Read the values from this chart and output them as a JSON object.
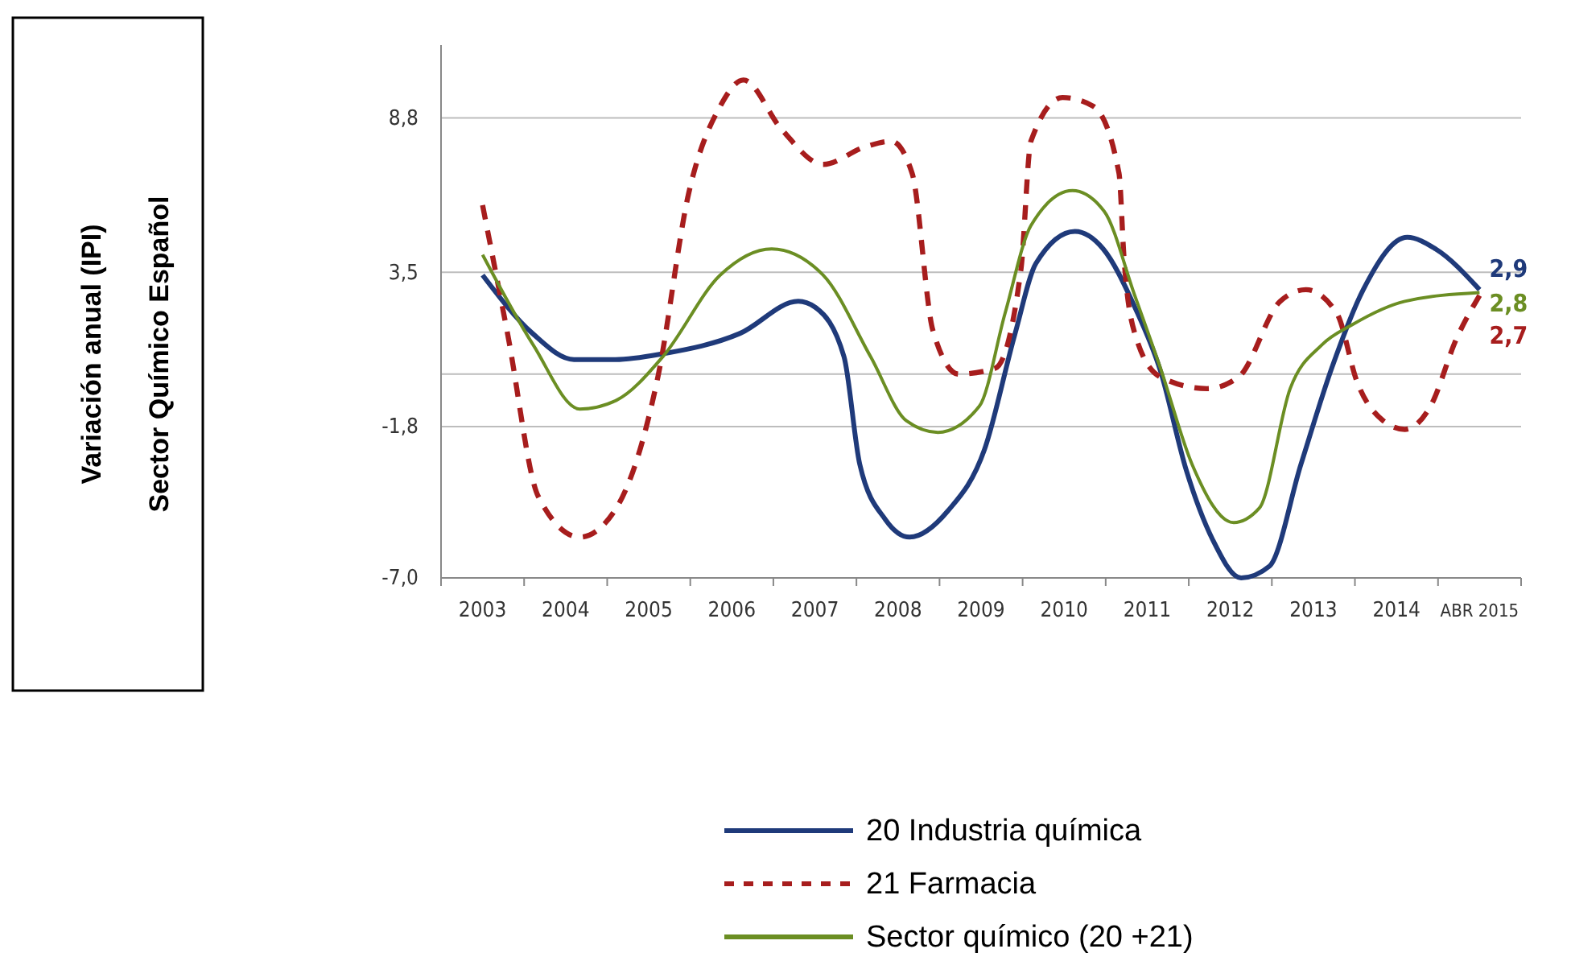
{
  "chart_data": {
    "type": "line",
    "ylabel": "Variación anual (IPI)\nSector Químico Español",
    "xlim": [
      2002.5,
      2015.5
    ],
    "xticks": [
      {
        "value": 2002.5,
        "label": null
      },
      {
        "value": 2003,
        "label": "2003"
      },
      {
        "value": 2003.5,
        "label": null
      },
      {
        "value": 2004,
        "label": "2004"
      },
      {
        "value": 2004.5,
        "label": null
      },
      {
        "value": 2005,
        "label": "2005"
      },
      {
        "value": 2005.5,
        "label": null
      },
      {
        "value": 2006,
        "label": "2006"
      },
      {
        "value": 2006.5,
        "label": null
      },
      {
        "value": 2007,
        "label": "2007"
      },
      {
        "value": 2007.5,
        "label": null
      },
      {
        "value": 2008,
        "label": "2008"
      },
      {
        "value": 2008.5,
        "label": null
      },
      {
        "value": 2009,
        "label": "2009"
      },
      {
        "value": 2009.5,
        "label": null
      },
      {
        "value": 2010,
        "label": "2010"
      },
      {
        "value": 2010.5,
        "label": null
      },
      {
        "value": 2011,
        "label": "2011"
      },
      {
        "value": 2011.5,
        "label": null
      },
      {
        "value": 2012,
        "label": "2012"
      },
      {
        "value": 2012.5,
        "label": null
      },
      {
        "value": 2013,
        "label": "2013"
      },
      {
        "value": 2013.5,
        "label": null
      },
      {
        "value": 2014,
        "label": "2014"
      },
      {
        "value": 2014.5,
        "label": null
      },
      {
        "value": 2015,
        "label": "ABR 2015"
      },
      {
        "value": 2015.5,
        "label": null
      }
    ],
    "ylim": [
      -7.0,
      11.3
    ],
    "yticks": [
      {
        "value": -7.0,
        "label": "-7,0"
      },
      {
        "value": -1.8,
        "label": "-1,8"
      },
      {
        "value": 0,
        "label": null
      },
      {
        "value": 3.5,
        "label": "3,5"
      },
      {
        "value": 8.8,
        "label": "8,8"
      }
    ],
    "grid": "y",
    "legend": "bottom",
    "series": [
      {
        "name": "20 Industria química",
        "color": "#1f3a7a",
        "line_style": "solid",
        "x": [
          2003,
          2003.6,
          2004.1,
          2004.6,
          2005.17,
          2006.1,
          2006.8,
          2007.0,
          2007.35,
          2007.54,
          2007.85,
          2008.14,
          2008.6,
          2009.04,
          2009.41,
          2009.66,
          2010.13,
          2010.47,
          2010.85,
          2011.16,
          2011.47,
          2011.79,
          2012.13,
          2012.47,
          2012.85,
          2013.22,
          2013.6,
          2014.13,
          2014.47,
          2015
        ],
        "values": [
          3.4,
          1.4,
          0.5,
          0.5,
          0.7,
          1.4,
          2.5,
          2.3,
          0.6,
          -3.1,
          -5.0,
          -5.6,
          -4.7,
          -2.6,
          1.4,
          3.8,
          4.9,
          4.3,
          2.3,
          0.1,
          -3.3,
          -5.7,
          -7.0,
          -6.6,
          -3.1,
          0.2,
          2.9,
          4.7,
          4.3,
          2.9
        ],
        "value_labels": [
          null,
          null,
          null,
          null,
          null,
          null,
          null,
          null,
          null,
          null,
          null,
          null,
          null,
          null,
          null,
          null,
          null,
          null,
          null,
          null,
          null,
          null,
          null,
          null,
          null,
          null,
          null,
          null,
          null,
          "2,9"
        ]
      },
      {
        "name": "21 Farmacia",
        "color": "#a71d1d",
        "line_style": "dashed",
        "x": [
          2003,
          2003.3,
          2003.67,
          2004.17,
          2004.61,
          2005.11,
          2005.48,
          2005.86,
          2006.14,
          2006.6,
          2007.1,
          2007.6,
          2007.92,
          2008.17,
          2008.42,
          2008.73,
          2009.17,
          2009.48,
          2009.6,
          2009.98,
          2010.35,
          2010.66,
          2010.72,
          2010.85,
          2011.16,
          2011.72,
          2012.1,
          2012.6,
          2012.91,
          2013.28,
          2013.53,
          2013.84,
          2014.1,
          2014.41,
          2014.72,
          2015
        ],
        "values": [
          5.8,
          1.4,
          -4.2,
          -5.6,
          -4.6,
          -0.1,
          6.2,
          9.2,
          10.1,
          8.4,
          7.2,
          7.8,
          8.0,
          6.9,
          1.5,
          0.0,
          0.2,
          3.6,
          8.0,
          9.5,
          9.2,
          6.9,
          4.0,
          1.4,
          -0.1,
          -0.5,
          -0.1,
          2.5,
          2.9,
          2.1,
          -0.3,
          -1.6,
          -1.9,
          -1.1,
          1.2,
          2.7
        ],
        "value_labels": [
          null,
          null,
          null,
          null,
          null,
          null,
          null,
          null,
          null,
          null,
          null,
          null,
          null,
          null,
          null,
          null,
          null,
          null,
          null,
          null,
          null,
          null,
          null,
          null,
          null,
          null,
          null,
          null,
          null,
          null,
          null,
          null,
          null,
          null,
          null,
          "2,7"
        ]
      },
      {
        "name": "Sector químico (20 +21)",
        "color": "#6b8e23",
        "line_style": "solid",
        "x": [
          2003,
          2003.61,
          2004.17,
          2004.61,
          2005.17,
          2005.86,
          2006.48,
          2007.1,
          2007.67,
          2008.1,
          2008.48,
          2008.98,
          2009.29,
          2009.6,
          2010.1,
          2010.48,
          2010.85,
          2011.16,
          2011.54,
          2012.04,
          2012.35,
          2012.72,
          2013.1,
          2013.47,
          2014.1,
          2015
        ],
        "values": [
          4.1,
          1.0,
          -1.2,
          -0.9,
          0.6,
          3.4,
          4.3,
          3.4,
          0.6,
          -1.6,
          -2.0,
          -1.1,
          2.1,
          5.1,
          6.3,
          5.6,
          2.7,
          0.2,
          -3.1,
          -5.1,
          -4.6,
          -0.5,
          1.0,
          1.7,
          2.5,
          2.8
        ],
        "value_labels": [
          null,
          null,
          null,
          null,
          null,
          null,
          null,
          null,
          null,
          null,
          null,
          null,
          null,
          null,
          null,
          null,
          null,
          null,
          null,
          null,
          null,
          null,
          null,
          null,
          null,
          "2,8"
        ]
      }
    ]
  }
}
